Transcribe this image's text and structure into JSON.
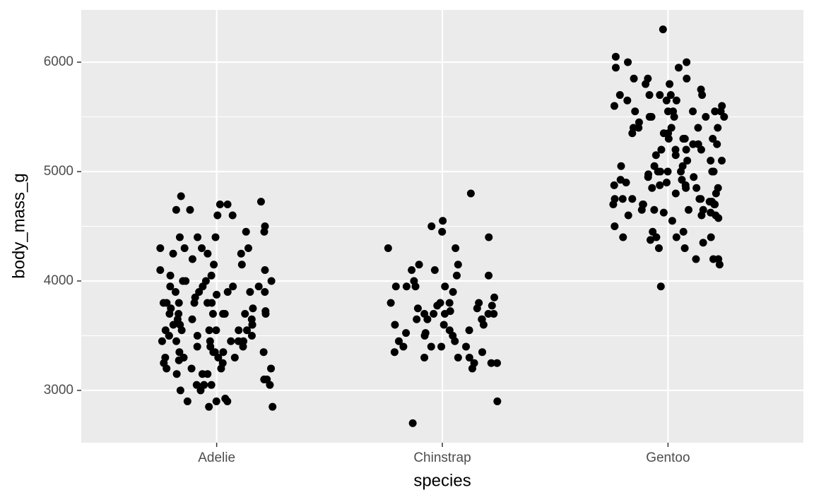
{
  "chart_data": {
    "type": "scatter",
    "x_label": "species",
    "y_label": "body_mass_g",
    "categories": [
      "Adelie",
      "Chinstrap",
      "Gentoo"
    ],
    "color": "#000000",
    "values": [
      [
        4100,
        4450,
        3800,
        3350,
        3150,
        3050,
        3450,
        3800,
        3500,
        3200,
        3050,
        3750,
        3000,
        2850,
        3600,
        3450,
        3900,
        3550,
        3950,
        3050,
        4450,
        3700,
        3300,
        3150,
        3900,
        4400,
        3550,
        4300,
        3700,
        4250,
        4000,
        4150,
        4200,
        3800,
        4000,
        2925,
        3200,
        3100,
        3350,
        3550,
        4700,
        3700,
        4050,
        4300,
        3550,
        3900,
        3650,
        3300,
        3450,
        4250,
        3800,
        3600,
        3500,
        3250,
        4000,
        3950,
        4150,
        4000,
        3850,
        3600,
        3350,
        3700,
        3650,
        3450,
        3950,
        3500,
        3900,
        2900,
        3050,
        3400,
        4300,
        4600,
        4400,
        3800,
        3550,
        2900,
        3650,
        3450,
        4775,
        3300,
        3400,
        2850,
        4050,
        3200,
        3750,
        3950,
        3350,
        3000,
        3400,
        4500,
        3600,
        4650,
        4700,
        3450,
        4300,
        3700,
        4100,
        3150,
        3200,
        4400,
        4650,
        3725,
        3500,
        3275,
        2900,
        4725,
        3900,
        3700,
        4250,
        3100,
        3300,
        4600,
        3550,
        3250,
        3875,
        3800,
        3700,
        3350
      ],
      [
        3950,
        3300,
        3550,
        3775,
        3650,
        3800,
        4800,
        4550,
        3950,
        3700,
        4300,
        3500,
        3450,
        3400,
        3650,
        3300,
        3700,
        2700,
        2900,
        3400,
        3600,
        3650,
        3800,
        4050,
        3250,
        4100,
        3200,
        3400,
        4400,
        3525,
        3500,
        3800,
        3650,
        4500,
        3725,
        3450,
        4150,
        3850,
        4000,
        3950,
        3250,
        3350,
        3300,
        3600,
        4450,
        3750,
        3550,
        3950,
        4100,
        3250,
        3700,
        3800,
        3525,
        3400,
        3350,
        4050,
        4150,
        3700,
        4300,
        3900,
        3600,
        3750,
        3775,
        3700
      ],
      [
        4500,
        5700,
        4450,
        5700,
        5400,
        4550,
        4800,
        5200,
        4400,
        5150,
        4650,
        5550,
        4650,
        5850,
        4200,
        5850,
        4150,
        6300,
        4800,
        5350,
        5700,
        5000,
        4400,
        5050,
        5000,
        5100,
        5650,
        4600,
        5550,
        5250,
        4700,
        5050,
        6050,
        5150,
        5400,
        4950,
        5250,
        4350,
        5350,
        3950,
        5700,
        4300,
        4750,
        5550,
        4900,
        4200,
        5400,
        5100,
        5300,
        4850,
        5300,
        4400,
        5000,
        4900,
        5050,
        4300,
        5000,
        4450,
        5550,
        4200,
        5300,
        4400,
        5650,
        4700,
        5700,
        4650,
        5800,
        4700,
        5550,
        4750,
        5000,
        5100,
        5200,
        4700,
        5800,
        4600,
        6000,
        4750,
        5950,
        4625,
        5450,
        4725,
        5350,
        4750,
        5600,
        4600,
        5300,
        4875,
        5550,
        4950,
        5400,
        4750,
        5650,
        4850,
        5200,
        4925,
        4875,
        4625,
        5250,
        4850,
        5600,
        4975,
        5500,
        4725,
        5500,
        4700,
        5500,
        4575,
        5500,
        5000,
        5950,
        4650,
        5500,
        4375,
        5850,
        4875,
        6000,
        4925,
        4850,
        5750,
        5200,
        5400
      ]
    ],
    "ylim": [
      2522,
      6478
    ],
    "yticks": [
      3000,
      4000,
      5000,
      6000
    ],
    "minor_yticks": [
      3500,
      4500,
      5500
    ],
    "grid": true
  }
}
